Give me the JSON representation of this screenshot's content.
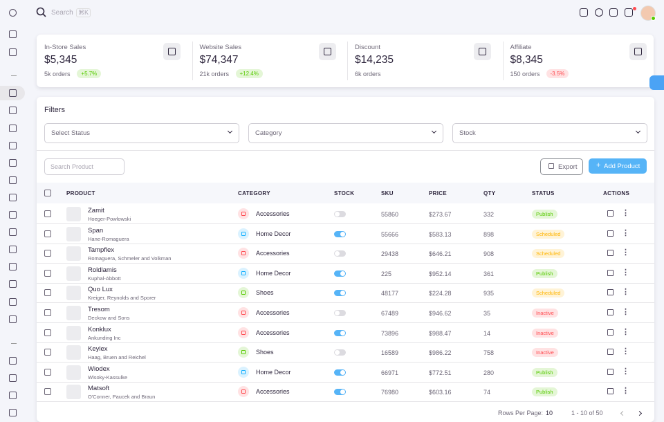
{
  "search": {
    "placeholder": "Search",
    "shortcut": "⌘K"
  },
  "stats": [
    {
      "title": "In-Store Sales",
      "value": "$5,345",
      "orders": "5k orders",
      "badge": "+5.7%",
      "badge_color": "#56ca00"
    },
    {
      "title": "Website Sales",
      "value": "$74,347",
      "orders": "21k orders",
      "badge": "+12.4%",
      "badge_color": "#56ca00"
    },
    {
      "title": "Discount",
      "value": "$14,235",
      "orders": "6k orders"
    },
    {
      "title": "Affiliate",
      "value": "$8,345",
      "orders": "150 orders",
      "badge": "-3.5%",
      "badge_color": "#ff4c51"
    }
  ],
  "filters": {
    "title": "Filters",
    "selects": [
      "Select Status",
      "Category",
      "Stock"
    ]
  },
  "toolbar": {
    "search_placeholder": "Search Product",
    "export": "Export",
    "add": "Add Product"
  },
  "table": {
    "headers": [
      "PRODUCT",
      "CATEGORY",
      "STOCK",
      "SKU",
      "PRICE",
      "QTY",
      "STATUS",
      "ACTIONS"
    ],
    "rows": [
      {
        "name": "Zamit",
        "brand": "Hoeger-Powlowski",
        "category": "Accessories",
        "category_color": "#ff4c51",
        "stock": false,
        "sku": "55860",
        "price": "$273.67",
        "qty": "332",
        "status": "Publish",
        "status_color": "#56ca00"
      },
      {
        "name": "Span",
        "brand": "Hane-Romaguera",
        "category": "Home Decor",
        "category_color": "#16b1ff",
        "stock": true,
        "sku": "55666",
        "price": "$583.13",
        "qty": "898",
        "status": "Scheduled",
        "status_color": "#ffb400"
      },
      {
        "name": "Tampflex",
        "brand": "Romaguera, Schmeler and Volkman",
        "category": "Accessories",
        "category_color": "#ff4c51",
        "stock": false,
        "sku": "29438",
        "price": "$646.21",
        "qty": "908",
        "status": "Scheduled",
        "status_color": "#ffb400"
      },
      {
        "name": "Roldlamis",
        "brand": "Kuphal-Abbott",
        "category": "Home Decor",
        "category_color": "#16b1ff",
        "stock": true,
        "sku": "225",
        "price": "$952.14",
        "qty": "361",
        "status": "Publish",
        "status_color": "#56ca00"
      },
      {
        "name": "Quo Lux",
        "brand": "Kreiger, Reynolds and Sporer",
        "category": "Shoes",
        "category_color": "#56ca00",
        "stock": true,
        "sku": "48177",
        "price": "$224.28",
        "qty": "935",
        "status": "Scheduled",
        "status_color": "#ffb400"
      },
      {
        "name": "Tresom",
        "brand": "Deckow and Sons",
        "category": "Accessories",
        "category_color": "#ff4c51",
        "stock": false,
        "sku": "67489",
        "price": "$946.62",
        "qty": "35",
        "status": "Inactive",
        "status_color": "#ff4c51"
      },
      {
        "name": "Konklux",
        "brand": "Ankunding Inc",
        "category": "Accessories",
        "category_color": "#ff4c51",
        "stock": true,
        "sku": "73896",
        "price": "$988.47",
        "qty": "14",
        "status": "Inactive",
        "status_color": "#ff4c51"
      },
      {
        "name": "Keylex",
        "brand": "Haag, Bruen and Reichel",
        "category": "Shoes",
        "category_color": "#56ca00",
        "stock": false,
        "sku": "16589",
        "price": "$986.22",
        "qty": "758",
        "status": "Inactive",
        "status_color": "#ff4c51"
      },
      {
        "name": "Wiodex",
        "brand": "Wisoky-Kassulke",
        "category": "Home Decor",
        "category_color": "#16b1ff",
        "stock": true,
        "sku": "66971",
        "price": "$772.51",
        "qty": "280",
        "status": "Publish",
        "status_color": "#56ca00"
      },
      {
        "name": "Matsoft",
        "brand": "O'Conner, Paucek and Braun",
        "category": "Accessories",
        "category_color": "#ff4c51",
        "stock": true,
        "sku": "76980",
        "price": "$603.16",
        "qty": "74",
        "status": "Publish",
        "status_color": "#56ca00"
      }
    ]
  },
  "pagination": {
    "rows_label": "Rows Per Page:",
    "rows_value": "10",
    "range": "1 - 10 of 50"
  }
}
